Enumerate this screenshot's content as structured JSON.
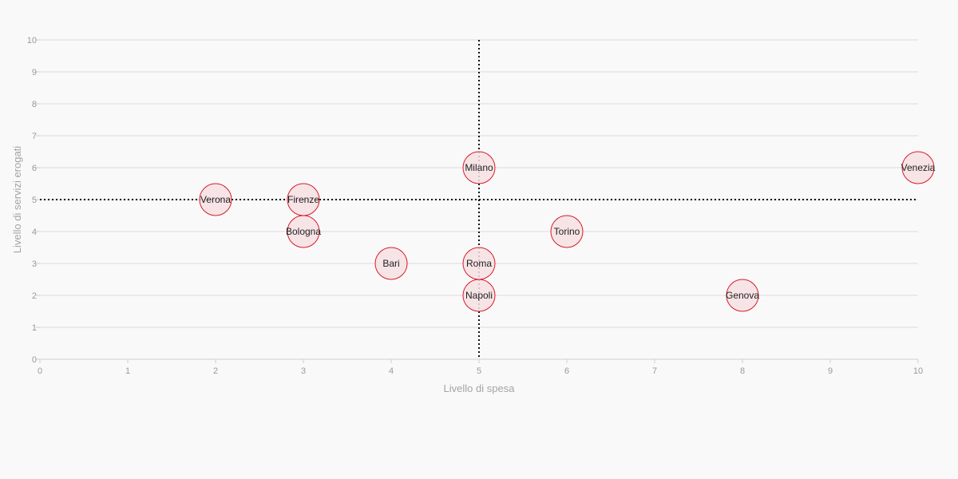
{
  "chart_data": {
    "type": "scatter",
    "xlabel": "Livello di spesa",
    "ylabel": "Livello di servizi erogati",
    "xlim": [
      0,
      10
    ],
    "ylim": [
      0,
      10
    ],
    "x_ticks": [
      "0",
      "1",
      "2",
      "3",
      "4",
      "5",
      "6",
      "7",
      "8",
      "9",
      "10"
    ],
    "y_ticks": [
      "0",
      "1",
      "2",
      "3",
      "4",
      "5",
      "6",
      "7",
      "8",
      "9",
      "10"
    ],
    "grid": true,
    "reference_lines": {
      "x": 5,
      "y": 5
    },
    "colors": {
      "marker_fill": "#f7e1e3",
      "marker_stroke": "#d81b2c",
      "reference": "#111111"
    },
    "points": [
      {
        "label": "Verona",
        "x": 2,
        "y": 5
      },
      {
        "label": "Firenze",
        "x": 3,
        "y": 5
      },
      {
        "label": "Bologna",
        "x": 3,
        "y": 4
      },
      {
        "label": "Bari",
        "x": 4,
        "y": 3
      },
      {
        "label": "Milano",
        "x": 5,
        "y": 6
      },
      {
        "label": "Roma",
        "x": 5,
        "y": 3
      },
      {
        "label": "Napoli",
        "x": 5,
        "y": 2
      },
      {
        "label": "Torino",
        "x": 6,
        "y": 4
      },
      {
        "label": "Genova",
        "x": 8,
        "y": 2
      },
      {
        "label": "Venezia",
        "x": 10,
        "y": 6
      }
    ]
  }
}
